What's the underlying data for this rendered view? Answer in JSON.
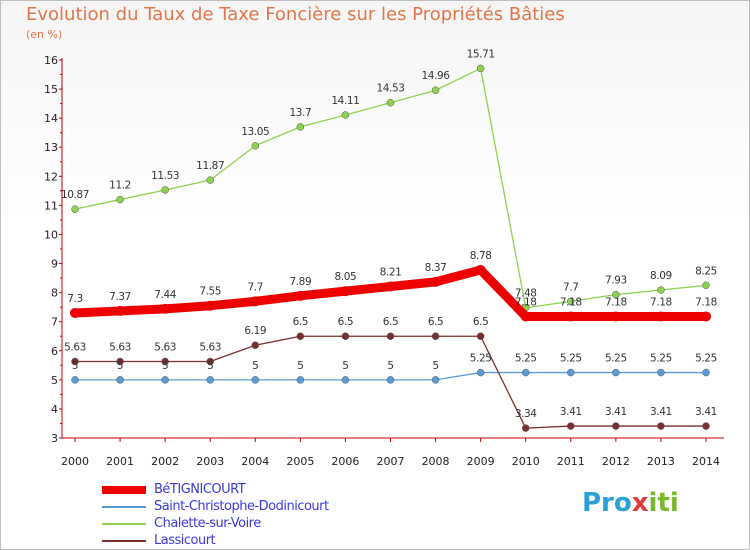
{
  "title": "Evolution du Taux de Taxe Foncière sur les Propriétés Bâties",
  "unit_label": "(en %)",
  "logo": {
    "part1": "Pro",
    "part2": "x",
    "part3": "iti"
  },
  "chart_data": {
    "type": "line",
    "title": "Evolution du Taux de Taxe Foncière sur les Propriétés Bâties",
    "ylabel": "(en %)",
    "xlabel": "",
    "ylim": [
      3,
      16
    ],
    "yticks": [
      3,
      4,
      5,
      6,
      7,
      8,
      9,
      10,
      11,
      12,
      13,
      14,
      15,
      16
    ],
    "categories": [
      "2000",
      "2001",
      "2002",
      "2003",
      "2004",
      "2005",
      "2006",
      "2007",
      "2008",
      "2009",
      "2010",
      "2011",
      "2012",
      "2013",
      "2014"
    ],
    "legend_position": "bottom-left",
    "series": [
      {
        "name": "BéTIGNICOURT",
        "color": "#ee0000",
        "thick": true,
        "values": [
          7.3,
          7.37,
          7.44,
          7.55,
          7.7,
          7.89,
          8.05,
          8.21,
          8.37,
          8.78,
          7.18,
          7.18,
          7.18,
          7.18,
          7.18
        ],
        "labels": [
          "7.3",
          "7.37",
          "7.44",
          "7.55",
          "7.7",
          "7.89",
          "8.05",
          "8.21",
          "8.37",
          "8.78",
          "7.18",
          "7.18",
          "7.18",
          "7.18",
          "7.18"
        ]
      },
      {
        "name": "Saint-Christophe-Dodinicourt",
        "color": "#5b9bd5",
        "thick": false,
        "values": [
          5,
          5,
          5,
          5,
          5,
          5,
          5,
          5,
          5,
          5.25,
          5.25,
          5.25,
          5.25,
          5.25,
          5.25
        ],
        "labels": [
          "5",
          "5",
          "5",
          "5",
          "5",
          "5",
          "5",
          "5",
          "5",
          "5.25",
          "5.25",
          "5.25",
          "5.25",
          "5.25",
          "5.25"
        ]
      },
      {
        "name": "Chalette-sur-Voire",
        "color": "#8fd14f",
        "thick": false,
        "values": [
          10.87,
          11.2,
          11.53,
          11.87,
          13.05,
          13.7,
          14.11,
          14.53,
          14.96,
          15.71,
          7.48,
          7.7,
          7.93,
          8.09,
          8.25
        ],
        "labels": [
          "10.87",
          "11.2",
          "11.53",
          "11.87",
          "13.05",
          "13.7",
          "14.11",
          "14.53",
          "14.96",
          "15.71",
          "7.48",
          "7.7",
          "7.93",
          "8.09",
          "8.25"
        ]
      },
      {
        "name": "Lassicourt",
        "color": "#7a2f2f",
        "thick": false,
        "values": [
          5.63,
          5.63,
          5.63,
          5.63,
          6.19,
          6.5,
          6.5,
          6.5,
          6.5,
          6.5,
          3.34,
          3.41,
          3.41,
          3.41,
          3.41
        ],
        "labels": [
          "5.63",
          "5.63",
          "5.63",
          "5.63",
          "6.19",
          "6.5",
          "6.5",
          "6.5",
          "6.5",
          "6.5",
          "3.34",
          "3.41",
          "3.41",
          "3.41",
          "3.41"
        ]
      }
    ]
  }
}
